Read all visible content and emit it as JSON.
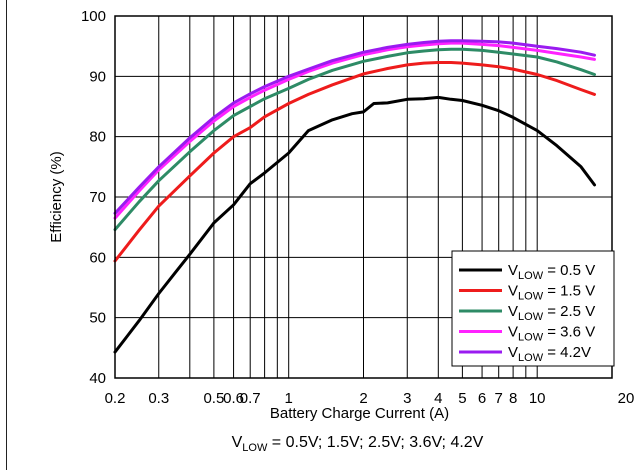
{
  "chart_data": {
    "type": "line",
    "xlabel": "Battery Charge Current (A)",
    "ylabel": "Efficiency (%)",
    "x_scale": "log",
    "xlim": [
      0.2,
      20
    ],
    "ylim": [
      40,
      100
    ],
    "grid": true,
    "legend_position": "lower-right",
    "x_ticks": [
      {
        "value": 0.2,
        "label": "0.2"
      },
      {
        "value": 0.3,
        "label": "0.3"
      },
      {
        "value": 0.5,
        "label": "0.5"
      },
      {
        "value": 0.6,
        "label": "0.6"
      },
      {
        "value": 0.7,
        "label": "0.7"
      },
      {
        "value": 1,
        "label": "1"
      },
      {
        "value": 2,
        "label": "2"
      },
      {
        "value": 3,
        "label": "3"
      },
      {
        "value": 4,
        "label": "4"
      },
      {
        "value": 5,
        "label": "5"
      },
      {
        "value": 6,
        "label": "6"
      },
      {
        "value": 7,
        "label": "7"
      },
      {
        "value": 8,
        "label": "8"
      },
      {
        "value": 10,
        "label": "10"
      },
      {
        "value": 20,
        "label": "20"
      }
    ],
    "x_grid": [
      0.2,
      0.3,
      0.4,
      0.5,
      0.6,
      0.7,
      0.8,
      0.9,
      1,
      2,
      3,
      4,
      5,
      6,
      7,
      8,
      9,
      10,
      20
    ],
    "y_ticks": [
      40,
      50,
      60,
      70,
      80,
      90,
      100
    ],
    "series": [
      {
        "name_main": "V",
        "name_sub": "LOW",
        "name_rest": " = 0.5 V",
        "color": "#000000",
        "x": [
          0.2,
          0.25,
          0.3,
          0.35,
          0.4,
          0.5,
          0.6,
          0.7,
          0.8,
          1,
          1.2,
          1.5,
          1.8,
          2,
          2.2,
          2.5,
          3,
          3.5,
          4,
          4.5,
          5,
          6,
          7,
          8,
          10,
          12,
          15,
          17
        ],
        "y": [
          44.3,
          49.5,
          54,
          57.5,
          60.5,
          65.7,
          68.7,
          72.2,
          74,
          77.3,
          81,
          82.8,
          83.8,
          84.1,
          85.5,
          85.6,
          86.2,
          86.3,
          86.5,
          86.2,
          86,
          85.2,
          84.3,
          83.2,
          81,
          78.5,
          75,
          72
        ]
      },
      {
        "name_main": "V",
        "name_sub": "LOW",
        "name_rest": " = 1.5 V",
        "color": "#ee1c1c",
        "x": [
          0.2,
          0.25,
          0.3,
          0.4,
          0.5,
          0.6,
          0.7,
          0.8,
          1,
          1.2,
          1.5,
          2,
          2.5,
          3,
          3.5,
          4,
          4.5,
          5,
          6,
          7,
          8,
          10,
          12,
          15,
          17
        ],
        "y": [
          59.4,
          64.5,
          68.5,
          73.5,
          77.3,
          80,
          81.5,
          83.3,
          85.5,
          87,
          88.6,
          90.4,
          91.3,
          91.9,
          92.2,
          92.3,
          92.3,
          92.2,
          91.9,
          91.6,
          91.2,
          90.3,
          89.3,
          87.8,
          87
        ]
      },
      {
        "name_main": "V",
        "name_sub": "LOW",
        "name_rest": " = 2.5 V",
        "color": "#2e8b66",
        "x": [
          0.2,
          0.25,
          0.3,
          0.4,
          0.5,
          0.6,
          0.7,
          0.8,
          1,
          1.2,
          1.5,
          2,
          2.5,
          3,
          3.5,
          4,
          4.5,
          5,
          6,
          7,
          8,
          10,
          12,
          15,
          17
        ],
        "y": [
          64.6,
          69.2,
          72.7,
          77.5,
          81,
          83.5,
          85,
          86.3,
          88,
          89.5,
          91,
          92.5,
          93.3,
          93.9,
          94.2,
          94.4,
          94.5,
          94.5,
          94.3,
          94,
          93.7,
          93.2,
          92.4,
          91.1,
          90.3
        ]
      },
      {
        "name_main": "V",
        "name_sub": "LOW",
        "name_rest": " = 3.6 V",
        "color": "#ff22ff",
        "x": [
          0.2,
          0.25,
          0.3,
          0.4,
          0.5,
          0.6,
          0.7,
          0.8,
          1,
          1.2,
          1.5,
          2,
          2.5,
          3,
          3.5,
          4,
          4.5,
          5,
          6,
          7,
          8,
          10,
          12,
          15,
          17
        ],
        "y": [
          66.5,
          71,
          74.5,
          79.2,
          82.6,
          85,
          86.5,
          87.7,
          89.5,
          90.8,
          92.2,
          93.6,
          94.4,
          94.9,
          95.2,
          95.4,
          95.5,
          95.5,
          95.3,
          95.1,
          94.8,
          94.3,
          93.8,
          93.2,
          92.8
        ]
      },
      {
        "name_main": "V",
        "name_sub": "LOW",
        "name_rest": " = 4.2V",
        "color": "#9a1bf0",
        "x": [
          0.2,
          0.25,
          0.3,
          0.4,
          0.5,
          0.6,
          0.7,
          0.8,
          1,
          1.2,
          1.5,
          2,
          2.5,
          3,
          3.5,
          4,
          4.5,
          5,
          6,
          7,
          8,
          10,
          12,
          15,
          17
        ],
        "y": [
          67.3,
          71.6,
          75,
          79.8,
          83.2,
          85.6,
          87.1,
          88.3,
          90,
          91.2,
          92.6,
          94,
          94.8,
          95.3,
          95.6,
          95.8,
          95.9,
          95.9,
          95.8,
          95.7,
          95.5,
          95,
          94.6,
          94,
          93.5
        ]
      }
    ],
    "caption_parts": {
      "main": "V",
      "sub": "LOW",
      "rest": " = 0.5V; 1.5V; 2.5V; 3.6V; 4.2V"
    }
  }
}
